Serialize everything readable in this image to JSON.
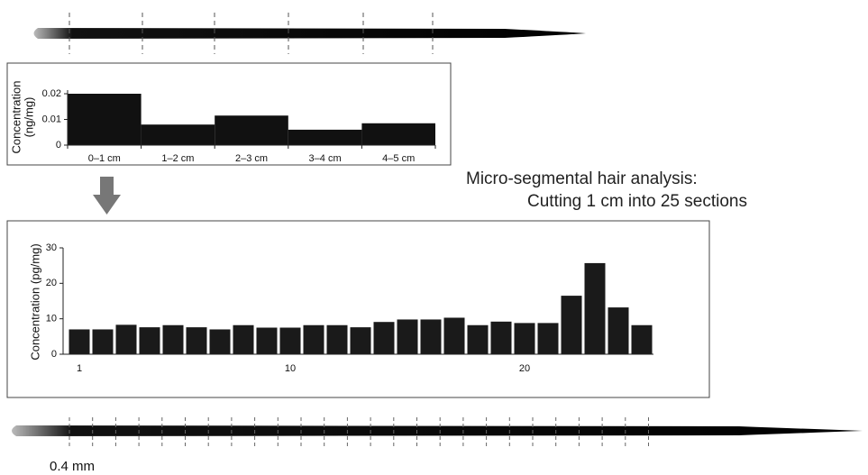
{
  "chart_data": [
    {
      "type": "bar",
      "y_label": [
        "Concentration",
        "(ng/mg)"
      ],
      "categories": [
        "0–1 cm",
        "1–2 cm",
        "2–3 cm",
        "3–4 cm",
        "4–5 cm"
      ],
      "values": [
        0.02,
        0.008,
        0.0115,
        0.006,
        0.0085
      ],
      "color": "#111111",
      "ylim": [
        0,
        0.02
      ],
      "yticks": [
        0,
        0.01,
        0.02
      ]
    },
    {
      "type": "bar",
      "y_label": [
        "Concentration (pg/mg)"
      ],
      "categories": [
        1,
        null,
        null,
        null,
        null,
        null,
        null,
        null,
        null,
        10,
        null,
        null,
        null,
        null,
        null,
        null,
        null,
        null,
        null,
        20,
        null,
        null,
        null,
        null,
        null
      ],
      "values": [
        7,
        7,
        8.3,
        7.6,
        8.2,
        7.6,
        7,
        8.2,
        7.5,
        7.5,
        8.2,
        8.2,
        7.6,
        9.1,
        9.8,
        9.8,
        10.3,
        8.2,
        9.2,
        8.8,
        8.8,
        16.5,
        25.7,
        13.2,
        8.2
      ],
      "color": "#1a1a1a",
      "ylim": [
        0,
        30
      ],
      "yticks": [
        0,
        10,
        20,
        30
      ],
      "annotations": [
        "Micro-segmental hair analysis:",
        "Cutting 1 cm into 25 sections",
        "0.4 mm"
      ]
    }
  ]
}
